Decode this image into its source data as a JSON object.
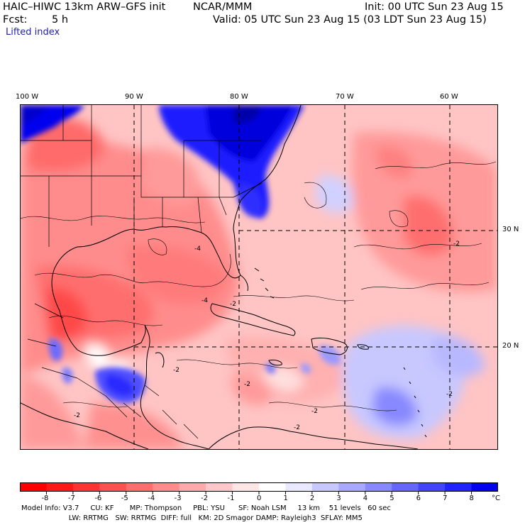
{
  "header": {
    "model": "HAIC–HIWC 13km ARW–GFS init",
    "org": "NCAR/MMM",
    "init": "Init: 00 UTC Sun 23 Aug 15",
    "fcst_label": "Fcst:",
    "fcst_value": "5 h",
    "valid": "Valid: 05 UTC Sun 23 Aug 15 (03 LDT Sun 23 Aug 15)",
    "field": "Lifted index"
  },
  "map": {
    "lon_labels": [
      "100 W",
      "90 W",
      "80 W",
      "70 W",
      "60 W"
    ],
    "lat_labels": [
      "30 N",
      "20 N"
    ],
    "contour_labels": [
      "-4",
      "-4",
      "-2",
      "-2",
      "-2",
      "-2",
      "-2",
      "-2",
      "-2",
      "-2"
    ]
  },
  "colorbar": {
    "unit": "°C",
    "ticks": [
      "-8",
      "-7",
      "-6",
      "-5",
      "-4",
      "-3",
      "-2",
      "-1",
      "0",
      "1",
      "2",
      "3",
      "4",
      "5",
      "6",
      "7",
      "8"
    ],
    "colors": [
      "#ff0000",
      "#ff1818",
      "#ff3333",
      "#ff5050",
      "#ff6e6e",
      "#ff8c8c",
      "#ffaaaa",
      "#ffc8c8",
      "#ffe6e6",
      "#ffffff",
      "#e8e8ff",
      "#c8c8ff",
      "#a8a8ff",
      "#8888ff",
      "#6666ff",
      "#4444ff",
      "#2222ff",
      "#0000ee"
    ]
  },
  "footer": {
    "line1": "Model Info: V3.7     CU: KF       MP: Thompson     PBL: YSU      SF: Noah LSM     13 km    51 levels   60 sec",
    "line2": "                     LW: RRTMG   SW: RRTMG  DIFF: full   KM: 2D Smagor DAMP: Rayleigh3  SFLAY: MM5"
  }
}
